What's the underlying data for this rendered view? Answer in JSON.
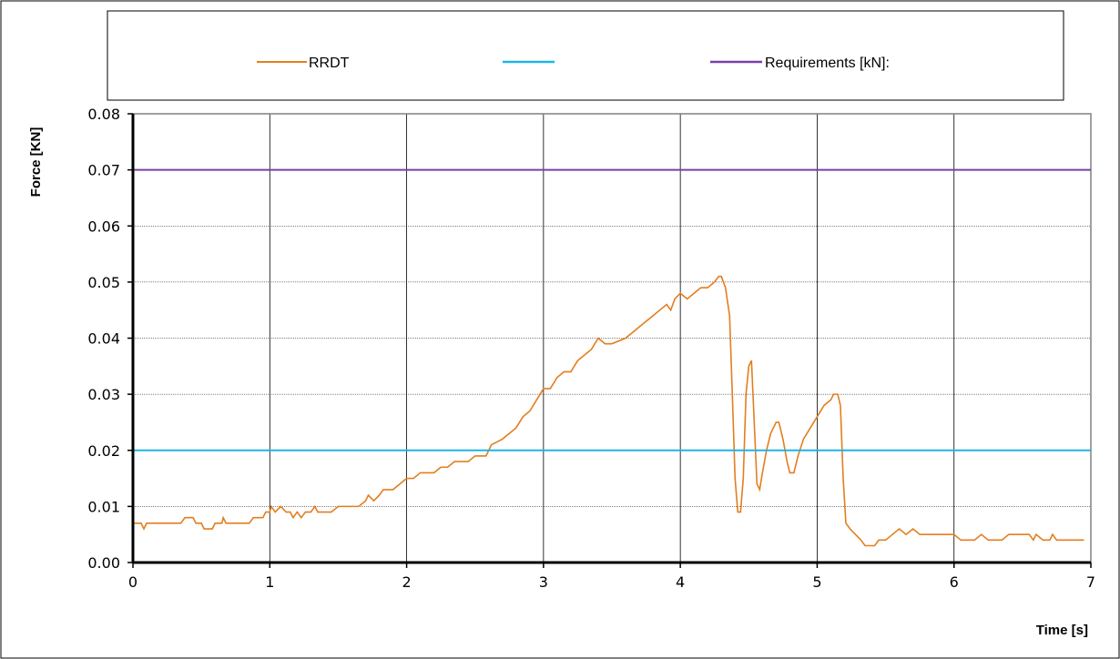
{
  "chart_data": {
    "type": "line",
    "title": "",
    "xlabel": "Time [s]",
    "ylabel": "Force [KN]",
    "xlim": [
      0,
      7
    ],
    "ylim": [
      0,
      0.08
    ],
    "x_ticks": [
      "0",
      "1",
      "2",
      "3",
      "4",
      "5",
      "6",
      "7"
    ],
    "y_ticks": [
      "0.00",
      "0.01",
      "0.02",
      "0.03",
      "0.04",
      "0.05",
      "0.06",
      "0.07",
      "0.08"
    ],
    "grid": true,
    "legend_position": "top",
    "legend": [
      {
        "label": "RRDT",
        "color": "#E37E1F"
      },
      {
        "label": "",
        "color": "#1FB4E8"
      },
      {
        "label": "Requirements [kN]:",
        "color": "#7A3FA8"
      }
    ],
    "series": [
      {
        "name": "RRDT",
        "color": "#E37E1F",
        "points": [
          [
            0,
            0.007
          ],
          [
            0.06,
            0.007
          ],
          [
            0.08,
            0.006
          ],
          [
            0.1,
            0.007
          ],
          [
            0.35,
            0.007
          ],
          [
            0.38,
            0.008
          ],
          [
            0.44,
            0.008
          ],
          [
            0.46,
            0.007
          ],
          [
            0.5,
            0.007
          ],
          [
            0.52,
            0.006
          ],
          [
            0.58,
            0.006
          ],
          [
            0.6,
            0.007
          ],
          [
            0.65,
            0.007
          ],
          [
            0.66,
            0.008
          ],
          [
            0.68,
            0.007
          ],
          [
            0.85,
            0.007
          ],
          [
            0.88,
            0.008
          ],
          [
            0.95,
            0.008
          ],
          [
            0.97,
            0.009
          ],
          [
            1.0,
            0.009
          ],
          [
            1.01,
            0.01
          ],
          [
            1.04,
            0.009
          ],
          [
            1.08,
            0.01
          ],
          [
            1.12,
            0.009
          ],
          [
            1.15,
            0.009
          ],
          [
            1.17,
            0.008
          ],
          [
            1.2,
            0.009
          ],
          [
            1.23,
            0.008
          ],
          [
            1.26,
            0.009
          ],
          [
            1.3,
            0.009
          ],
          [
            1.33,
            0.01
          ],
          [
            1.35,
            0.009
          ],
          [
            1.45,
            0.009
          ],
          [
            1.5,
            0.01
          ],
          [
            1.65,
            0.01
          ],
          [
            1.7,
            0.011
          ],
          [
            1.72,
            0.012
          ],
          [
            1.76,
            0.011
          ],
          [
            1.8,
            0.012
          ],
          [
            1.83,
            0.013
          ],
          [
            1.9,
            0.013
          ],
          [
            1.95,
            0.014
          ],
          [
            2.0,
            0.015
          ],
          [
            2.05,
            0.015
          ],
          [
            2.1,
            0.016
          ],
          [
            2.2,
            0.016
          ],
          [
            2.25,
            0.017
          ],
          [
            2.3,
            0.017
          ],
          [
            2.35,
            0.018
          ],
          [
            2.45,
            0.018
          ],
          [
            2.5,
            0.019
          ],
          [
            2.58,
            0.019
          ],
          [
            2.62,
            0.021
          ],
          [
            2.7,
            0.022
          ],
          [
            2.75,
            0.023
          ],
          [
            2.8,
            0.024
          ],
          [
            2.85,
            0.026
          ],
          [
            2.9,
            0.027
          ],
          [
            2.95,
            0.029
          ],
          [
            3.0,
            0.031
          ],
          [
            3.05,
            0.031
          ],
          [
            3.1,
            0.033
          ],
          [
            3.15,
            0.034
          ],
          [
            3.2,
            0.034
          ],
          [
            3.25,
            0.036
          ],
          [
            3.3,
            0.037
          ],
          [
            3.35,
            0.038
          ],
          [
            3.4,
            0.04
          ],
          [
            3.45,
            0.039
          ],
          [
            3.5,
            0.039
          ],
          [
            3.6,
            0.04
          ],
          [
            3.65,
            0.041
          ],
          [
            3.7,
            0.042
          ],
          [
            3.75,
            0.043
          ],
          [
            3.8,
            0.044
          ],
          [
            3.85,
            0.045
          ],
          [
            3.9,
            0.046
          ],
          [
            3.93,
            0.045
          ],
          [
            3.96,
            0.047
          ],
          [
            4.0,
            0.048
          ],
          [
            4.05,
            0.047
          ],
          [
            4.1,
            0.048
          ],
          [
            4.15,
            0.049
          ],
          [
            4.2,
            0.049
          ],
          [
            4.25,
            0.05
          ],
          [
            4.28,
            0.051
          ],
          [
            4.3,
            0.051
          ],
          [
            4.33,
            0.049
          ],
          [
            4.36,
            0.044
          ],
          [
            4.38,
            0.03
          ],
          [
            4.4,
            0.015
          ],
          [
            4.42,
            0.009
          ],
          [
            4.44,
            0.009
          ],
          [
            4.46,
            0.015
          ],
          [
            4.48,
            0.03
          ],
          [
            4.5,
            0.035
          ],
          [
            4.52,
            0.036
          ],
          [
            4.54,
            0.025
          ],
          [
            4.56,
            0.014
          ],
          [
            4.58,
            0.013
          ],
          [
            4.6,
            0.016
          ],
          [
            4.63,
            0.02
          ],
          [
            4.66,
            0.023
          ],
          [
            4.7,
            0.025
          ],
          [
            4.72,
            0.025
          ],
          [
            4.75,
            0.022
          ],
          [
            4.78,
            0.018
          ],
          [
            4.8,
            0.016
          ],
          [
            4.83,
            0.016
          ],
          [
            4.86,
            0.019
          ],
          [
            4.9,
            0.022
          ],
          [
            4.95,
            0.024
          ],
          [
            5.0,
            0.026
          ],
          [
            5.05,
            0.028
          ],
          [
            5.1,
            0.029
          ],
          [
            5.12,
            0.03
          ],
          [
            5.15,
            0.03
          ],
          [
            5.17,
            0.028
          ],
          [
            5.19,
            0.015
          ],
          [
            5.21,
            0.007
          ],
          [
            5.24,
            0.006
          ],
          [
            5.28,
            0.005
          ],
          [
            5.32,
            0.004
          ],
          [
            5.35,
            0.003
          ],
          [
            5.42,
            0.003
          ],
          [
            5.45,
            0.004
          ],
          [
            5.5,
            0.004
          ],
          [
            5.55,
            0.005
          ],
          [
            5.6,
            0.006
          ],
          [
            5.65,
            0.005
          ],
          [
            5.7,
            0.006
          ],
          [
            5.75,
            0.005
          ],
          [
            6.0,
            0.005
          ],
          [
            6.05,
            0.004
          ],
          [
            6.15,
            0.004
          ],
          [
            6.2,
            0.005
          ],
          [
            6.25,
            0.004
          ],
          [
            6.35,
            0.004
          ],
          [
            6.4,
            0.005
          ],
          [
            6.55,
            0.005
          ],
          [
            6.58,
            0.004
          ],
          [
            6.6,
            0.005
          ],
          [
            6.65,
            0.004
          ],
          [
            6.7,
            0.004
          ],
          [
            6.72,
            0.005
          ],
          [
            6.75,
            0.004
          ],
          [
            6.95,
            0.004
          ]
        ]
      },
      {
        "name": "",
        "color": "#1FB4E8",
        "points": [
          [
            0,
            0.02
          ],
          [
            7,
            0.02
          ]
        ]
      },
      {
        "name": "Requirements [kN]:",
        "color": "#7A3FA8",
        "points": [
          [
            0,
            0.07
          ],
          [
            7,
            0.07
          ]
        ]
      }
    ]
  }
}
